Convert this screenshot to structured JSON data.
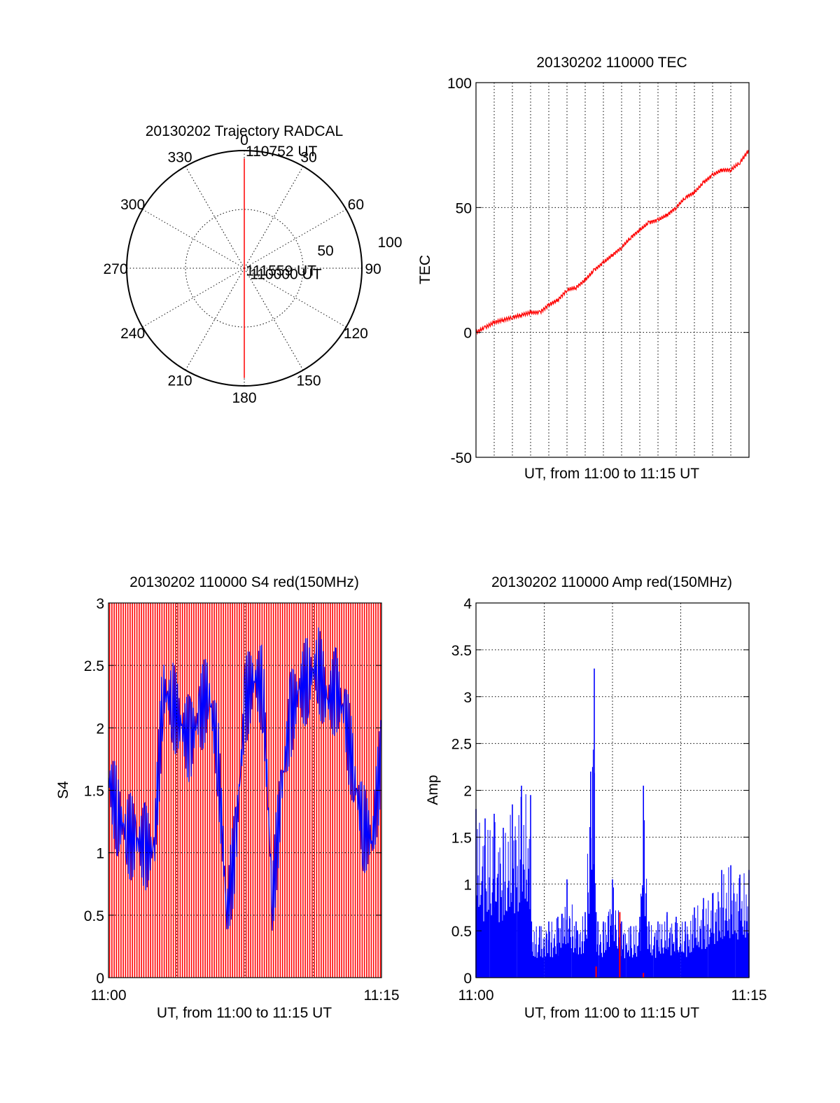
{
  "chart_data": [
    {
      "type": "polar",
      "title": "20130202 Trajectory RADCAL",
      "angle_labels": [
        "0",
        "30",
        "60",
        "90",
        "120",
        "150",
        "180",
        "210",
        "240",
        "270",
        "300",
        "330"
      ],
      "radial_labels": [
        "50",
        "100"
      ],
      "radial_range": [
        0,
        100
      ],
      "grid": true,
      "trajectory": {
        "color": "#ff0000",
        "points": [
          {
            "azimuth": 180,
            "elevation": 90
          },
          {
            "azimuth": 180,
            "elevation": 85
          },
          {
            "azimuth": 180,
            "elevation": 75
          },
          {
            "azimuth": 180,
            "elevation": 60
          },
          {
            "azimuth": 180,
            "elevation": 45
          },
          {
            "azimuth": 180,
            "elevation": 25
          },
          {
            "azimuth": 180,
            "elevation": 6
          },
          {
            "azimuth": 0,
            "elevation": 6
          },
          {
            "azimuth": 0,
            "elevation": 30
          },
          {
            "azimuth": 0,
            "elevation": 50
          },
          {
            "azimuth": 0,
            "elevation": 70
          },
          {
            "azimuth": 0,
            "elevation": 85
          },
          {
            "azimuth": 0,
            "elevation": 90
          }
        ]
      },
      "annotations": [
        {
          "text": "111559 UT",
          "azimuth": 3,
          "elevation": 88
        },
        {
          "text": "110752 UT",
          "azimuth": 0,
          "elevation": 0
        },
        {
          "text": "110000 UT",
          "azimuth": 177,
          "elevation": 88
        }
      ]
    },
    {
      "type": "line",
      "title": "20130202 110000 TEC",
      "xlabel": "UT, from 11:00 to 11:15 UT",
      "ylabel": "TEC",
      "xlim": [
        "11:00",
        "11:15"
      ],
      "ylim": [
        -50,
        100
      ],
      "yticks": [
        "-50",
        "0",
        "50",
        "100"
      ],
      "grid": true,
      "series": [
        {
          "color": "#ff0000",
          "x_minutes": [
            0,
            0.5,
            1,
            1.5,
            2,
            2.5,
            3,
            3.5,
            4,
            4.5,
            5,
            5.5,
            6,
            6.5,
            7,
            7.5,
            8,
            8.5,
            9,
            9.5,
            10,
            10.5,
            11,
            11.5,
            12,
            12.5,
            13,
            13.5,
            14,
            14.5,
            15
          ],
          "values": [
            0,
            2,
            4,
            5,
            6,
            7,
            8,
            8,
            11,
            13,
            17,
            18,
            21,
            25,
            28,
            31,
            34,
            38,
            41,
            44,
            45,
            47,
            50,
            54,
            56,
            60,
            63,
            65,
            65,
            68,
            73
          ]
        }
      ]
    },
    {
      "type": "line",
      "title": "20130202 110000 S4 red(150MHz)",
      "xlabel": "UT, from 11:00 to 11:15 UT",
      "ylabel": "S4",
      "xticks": [
        "11:00",
        "11:15"
      ],
      "ylim": [
        0,
        3
      ],
      "yticks": [
        "0",
        "0.5",
        "1",
        "1.5",
        "2",
        "2.5",
        "3"
      ],
      "grid": true,
      "series": [
        {
          "color": "#0000ff",
          "x_minutes": [
            0,
            0.5,
            1,
            1.5,
            2,
            2.5,
            3,
            3.5,
            4,
            4.5,
            5,
            5.5,
            6,
            6.5,
            7,
            7.5,
            8,
            8.5,
            9,
            9.5,
            10,
            10.5,
            11,
            11.5,
            12,
            12.5,
            13,
            13.5,
            14,
            14.5,
            15
          ],
          "values": [
            1.6,
            1.3,
            1.15,
            1.1,
            1.05,
            1.0,
            2.3,
            2.2,
            2.0,
            1.9,
            2.1,
            2.3,
            1.8,
            0.5,
            1.1,
            2.2,
            2.4,
            2.3,
            0.6,
            1.5,
            2.1,
            2.3,
            2.4,
            2.5,
            2.2,
            2.3,
            2.1,
            1.6,
            1.2,
            1.1,
            1.8
          ]
        },
        {
          "color": "#ff0000",
          "note_visible": "dense vertical red traces spanning 0 to 3",
          "x_minutes": [],
          "values": []
        }
      ]
    },
    {
      "type": "line",
      "title": "20130202 110000 Amp red(150MHz)",
      "xlabel": "UT, from 11:00 to 11:15 UT",
      "ylabel": "Amp",
      "xticks": [
        "11:00",
        "11:15"
      ],
      "ylim": [
        0,
        4
      ],
      "yticks": [
        "0",
        "0.5",
        "1",
        "1.5",
        "2",
        "2.5",
        "3",
        "3.5",
        "4"
      ],
      "grid": true,
      "series": [
        {
          "color": "#0000ff",
          "x_minutes": [
            0,
            0.5,
            1,
            1.5,
            2,
            2.5,
            3,
            3.05,
            3.5,
            4,
            4.5,
            5,
            5.5,
            6,
            6.3,
            6.5,
            6.6,
            6.7,
            7,
            7.5,
            8,
            8.5,
            9,
            9.2,
            9.5,
            10,
            10.5,
            11,
            11.5,
            12,
            12.5,
            13,
            13.5,
            14,
            14.5,
            15
          ],
          "values": [
            1.8,
            1.7,
            1.75,
            1.6,
            1.85,
            2.05,
            1.95,
            0.6,
            0.55,
            0.6,
            0.65,
            1.05,
            0.6,
            0.7,
            2.2,
            3.3,
            0.7,
            0.6,
            0.6,
            1.05,
            0.6,
            0.55,
            0.65,
            2.05,
            0.6,
            0.6,
            0.7,
            0.65,
            0.6,
            0.75,
            0.85,
            0.9,
            1.15,
            1.2,
            1.1,
            1.15
          ]
        },
        {
          "color": "#ff0000",
          "x_minutes": [
            6.6,
            7.9,
            9.2
          ],
          "values": [
            0.12,
            0.7,
            0.05
          ]
        }
      ]
    }
  ]
}
